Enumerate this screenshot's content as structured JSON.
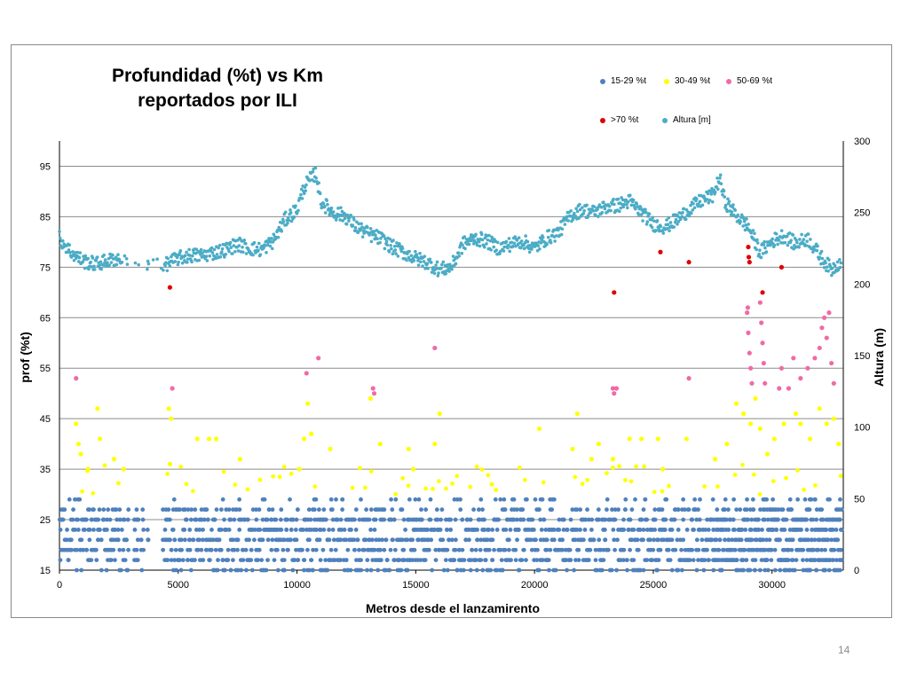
{
  "page_number": "14",
  "chart_data": {
    "type": "scatter",
    "title": "Profundidad (%t) vs Km reportados por ILI",
    "title_lines": [
      "Profundidad (%t) vs Km",
      "reportados por ILI"
    ],
    "xlabel": "Metros desde el lanzamirento",
    "ylabel": "prof (%t)",
    "y2label": "Altura (m)",
    "xlim": [
      0,
      33000
    ],
    "ylim": [
      15,
      100
    ],
    "y2lim": [
      0,
      300
    ],
    "x_ticks": [
      "0",
      "5000",
      "10000",
      "15000",
      "20000",
      "25000",
      "30000"
    ],
    "y_ticks": [
      "15",
      "25",
      "35",
      "45",
      "55",
      "65",
      "75",
      "85",
      "95"
    ],
    "y2_ticks": [
      "0",
      "50",
      "100",
      "150",
      "200",
      "250",
      "300"
    ],
    "grid": "horizontal",
    "legend_position": "top-right",
    "colors": {
      "s1": "#4f81bd",
      "s2": "#ffff00",
      "s3": "#f06aa6",
      "s4": "#e00000",
      "s5": "#4bacc6"
    },
    "series": [
      {
        "name": "15-29 %t",
        "axis": "left",
        "note": "dense band of points between 15 and 29 %t across 0–33000 m",
        "y_range": [
          15,
          29
        ]
      },
      {
        "name": "30-49 %t",
        "axis": "left",
        "points": [
          [
            700,
            44
          ],
          [
            800,
            40
          ],
          [
            900,
            38
          ],
          [
            1200,
            35
          ],
          [
            1600,
            47
          ],
          [
            1700,
            41
          ],
          [
            2300,
            37
          ],
          [
            2700,
            35
          ],
          [
            4600,
            47
          ],
          [
            4700,
            45
          ],
          [
            4650,
            36
          ],
          [
            5800,
            41
          ],
          [
            6300,
            41
          ],
          [
            6600,
            41
          ],
          [
            7600,
            37
          ],
          [
            10100,
            35
          ],
          [
            10300,
            41
          ],
          [
            10450,
            48
          ],
          [
            10600,
            42
          ],
          [
            11400,
            39
          ],
          [
            13100,
            49
          ],
          [
            13500,
            40
          ],
          [
            14700,
            39
          ],
          [
            14900,
            35
          ],
          [
            15800,
            40
          ],
          [
            16000,
            46
          ],
          [
            18200,
            32
          ],
          [
            20200,
            43
          ],
          [
            21800,
            46
          ],
          [
            21600,
            39
          ],
          [
            22400,
            37
          ],
          [
            22700,
            40
          ],
          [
            23300,
            37
          ],
          [
            24000,
            41
          ],
          [
            24500,
            41
          ],
          [
            25200,
            41
          ],
          [
            25400,
            35
          ],
          [
            26400,
            41
          ],
          [
            27600,
            37
          ],
          [
            28100,
            40
          ],
          [
            28500,
            48
          ],
          [
            28800,
            46
          ],
          [
            29100,
            44
          ],
          [
            29300,
            49
          ],
          [
            29500,
            43
          ],
          [
            29800,
            38
          ],
          [
            30100,
            41
          ],
          [
            30500,
            44
          ],
          [
            31000,
            46
          ],
          [
            31200,
            44
          ],
          [
            31600,
            41
          ],
          [
            32000,
            47
          ],
          [
            32300,
            44
          ],
          [
            32600,
            45
          ],
          [
            32800,
            40
          ]
        ]
      },
      {
        "name": "50-69 %t",
        "axis": "left",
        "points": [
          [
            700,
            53
          ],
          [
            4750,
            51
          ],
          [
            10400,
            54
          ],
          [
            10900,
            57
          ],
          [
            13200,
            51
          ],
          [
            13250,
            50
          ],
          [
            15800,
            59
          ],
          [
            23300,
            51
          ],
          [
            23450,
            51
          ],
          [
            23350,
            50
          ],
          [
            26500,
            53
          ],
          [
            28950,
            66
          ],
          [
            29000,
            62
          ],
          [
            29050,
            58
          ],
          [
            29100,
            55
          ],
          [
            29150,
            52
          ],
          [
            28980,
            67
          ],
          [
            29500,
            68
          ],
          [
            29550,
            64
          ],
          [
            29600,
            60
          ],
          [
            29650,
            56
          ],
          [
            29700,
            52
          ],
          [
            30300,
            51
          ],
          [
            30400,
            55
          ],
          [
            30700,
            51
          ],
          [
            30900,
            57
          ],
          [
            31200,
            53
          ],
          [
            31500,
            55
          ],
          [
            31800,
            57
          ],
          [
            32000,
            59
          ],
          [
            32100,
            63
          ],
          [
            32200,
            65
          ],
          [
            32300,
            61
          ],
          [
            32400,
            66
          ],
          [
            32500,
            56
          ],
          [
            32600,
            52
          ]
        ]
      },
      {
        "name": ">70 %t",
        "axis": "left",
        "points": [
          [
            4650,
            71
          ],
          [
            23350,
            70
          ],
          [
            25300,
            78
          ],
          [
            26500,
            76
          ],
          [
            29000,
            79
          ],
          [
            29020,
            77
          ],
          [
            29050,
            76
          ],
          [
            29600,
            70
          ],
          [
            30400,
            75
          ]
        ]
      },
      {
        "name": "Altura [m]",
        "axis": "right",
        "profile_x": [
          0,
          500,
          1000,
          1500,
          2000,
          2500,
          3000,
          3500,
          4000,
          4500,
          5000,
          5500,
          6000,
          6500,
          7000,
          7500,
          8000,
          8500,
          9000,
          9500,
          10000,
          10300,
          10500,
          10800,
          11000,
          11500,
          12000,
          12500,
          13000,
          13500,
          14000,
          14500,
          15000,
          15500,
          16000,
          16500,
          17000,
          17500,
          18000,
          18500,
          19000,
          19500,
          20000,
          20500,
          21000,
          21500,
          22000,
          22500,
          23000,
          23500,
          24000,
          24500,
          25000,
          25500,
          26000,
          26500,
          27000,
          27500,
          27800,
          28000,
          28500,
          29000,
          29500,
          30000,
          30500,
          31000,
          31500,
          32000,
          32500,
          33000
        ],
        "profile_y": [
          232,
          222,
          216,
          214,
          216,
          218,
          214,
          215,
          214,
          214,
          218,
          220,
          220,
          222,
          224,
          228,
          225,
          224,
          230,
          245,
          252,
          268,
          272,
          278,
          258,
          250,
          248,
          240,
          235,
          232,
          226,
          222,
          218,
          215,
          210,
          212,
          228,
          232,
          230,
          225,
          228,
          230,
          225,
          232,
          236,
          248,
          252,
          250,
          254,
          255,
          258,
          250,
          242,
          240,
          245,
          252,
          258,
          262,
          274,
          258,
          248,
          240,
          222,
          230,
          234,
          228,
          232,
          220,
          210,
          218
        ]
      }
    ]
  }
}
